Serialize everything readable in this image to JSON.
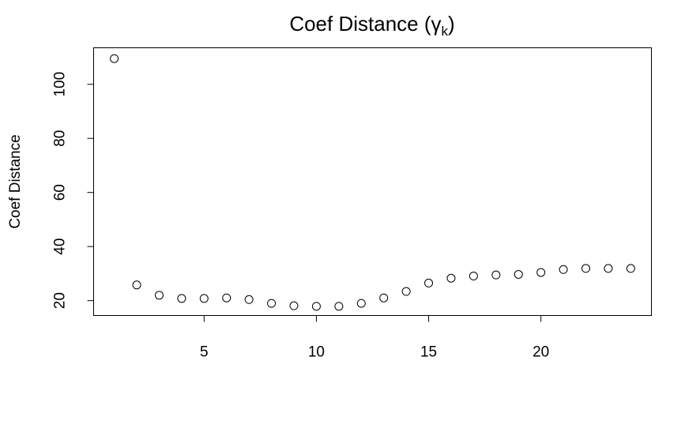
{
  "chart_data": {
    "type": "scatter",
    "title": "Coef Distance (",
    "title_symbol": "γ",
    "title_subscript": "k",
    "title_close": ")",
    "xlabel": "",
    "ylabel": "Coef Distance",
    "xlim": [
      0.08,
      24.92
    ],
    "ylim": [
      14.5,
      113.5
    ],
    "xticks": [
      5,
      10,
      15,
      20
    ],
    "yticks": [
      20,
      40,
      60,
      80,
      100
    ],
    "grid": false,
    "legend": "none",
    "marker": "open-circle",
    "x": [
      1,
      2,
      3,
      4,
      5,
      6,
      7,
      8,
      9,
      10,
      11,
      12,
      13,
      14,
      15,
      16,
      17,
      18,
      19,
      20,
      21,
      22,
      23,
      24
    ],
    "y": [
      109.5,
      25.8,
      22.0,
      20.8,
      20.8,
      21.0,
      20.4,
      19.0,
      18.1,
      17.9,
      17.9,
      19.0,
      21.0,
      23.4,
      26.5,
      28.3,
      29.1,
      29.5,
      29.7,
      30.4,
      31.5,
      31.9,
      31.9,
      31.9
    ]
  }
}
